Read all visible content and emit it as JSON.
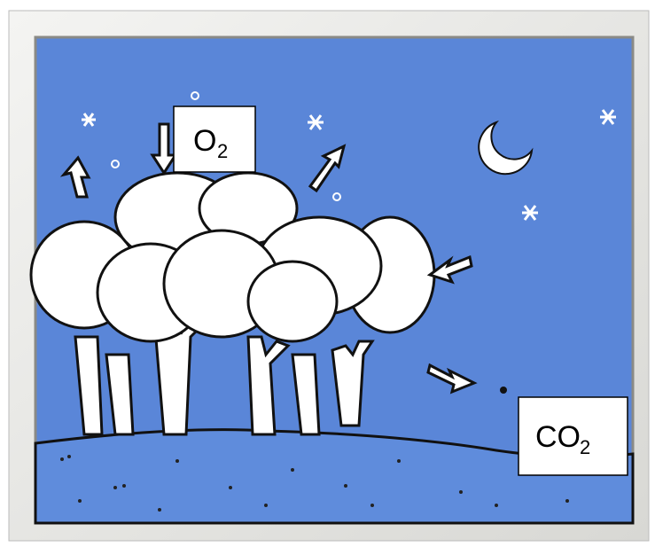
{
  "labels": [
    {
      "text": "O",
      "subscript": "2"
    },
    {
      "text": "CO",
      "subscript": "2"
    }
  ]
}
